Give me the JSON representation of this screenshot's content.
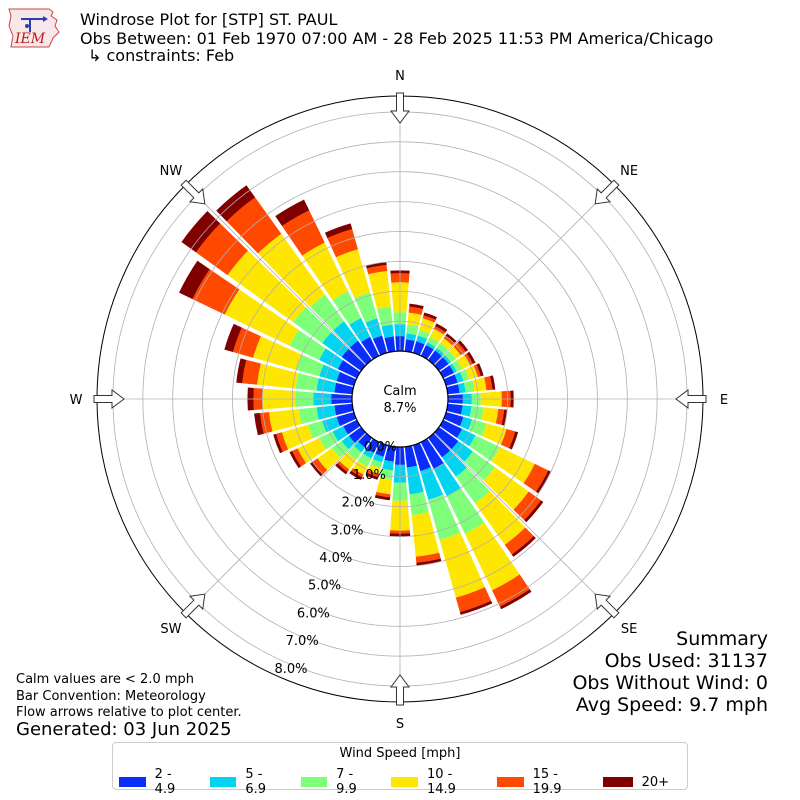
{
  "header": {
    "title": "Windrose Plot for [STP] ST. PAUL",
    "obs_between": "Obs Between: 01 Feb 1970 07:00 AM - 28 Feb 2025 11:53 PM America/Chicago",
    "constraints": "↳ constraints: Feb",
    "logo_text": "IEM"
  },
  "notes": {
    "calm_note": "Calm values are < 2.0 mph",
    "bar_convention": "Bar Convention: Meteorology",
    "flow_arrows": "Flow arrows relative to plot center.",
    "generated": "Generated: 03 Jun 2025"
  },
  "summary": {
    "heading": "Summary",
    "obs_used": "Obs Used: 31137",
    "obs_without_wind": "Obs Without Wind: 0",
    "avg_speed": "Avg Speed: 9.7 mph"
  },
  "calm": {
    "label": "Calm",
    "value": "8.7%"
  },
  "legend": {
    "title": "Wind Speed [mph]",
    "items": [
      {
        "label": "2 - 4.9",
        "color": "#0a2dfa"
      },
      {
        "label": "5 - 6.9",
        "color": "#00d4f0"
      },
      {
        "label": "7 - 9.9",
        "color": "#7dff7a"
      },
      {
        "label": "10 - 14.9",
        "color": "#ffe600"
      },
      {
        "label": "15 - 19.9",
        "color": "#ff4800"
      },
      {
        "label": "20+",
        "color": "#800000"
      }
    ]
  },
  "chart_data": {
    "type": "windrose",
    "direction_labels": [
      "N",
      "NE",
      "E",
      "SE",
      "S",
      "SW",
      "W",
      "NW"
    ],
    "radial_tick_labels": [
      "0.0%",
      "1.0%",
      "2.0%",
      "3.0%",
      "4.0%",
      "5.0%",
      "6.0%",
      "7.0%",
      "8.0%"
    ],
    "rmax": 8.5,
    "grid": true,
    "bins": [
      "2 - 4.9",
      "5 - 6.9",
      "7 - 9.9",
      "10 - 14.9",
      "15 - 19.9",
      "20+"
    ],
    "directions_deg": [
      0,
      10,
      20,
      30,
      40,
      50,
      60,
      70,
      80,
      90,
      100,
      110,
      120,
      130,
      140,
      150,
      160,
      170,
      180,
      190,
      200,
      210,
      220,
      230,
      240,
      250,
      260,
      270,
      280,
      290,
      300,
      310,
      320,
      330,
      340,
      350
    ],
    "values_cumulative_percent": [
      [
        0.5,
        0.9,
        1.3,
        2.3,
        2.6,
        2.7
      ],
      [
        0.4,
        0.6,
        0.9,
        1.3,
        1.5,
        1.6
      ],
      [
        0.4,
        0.6,
        0.8,
        1.2,
        1.3,
        1.4
      ],
      [
        0.4,
        0.5,
        0.7,
        1.0,
        1.1,
        1.2
      ],
      [
        0.4,
        0.5,
        0.7,
        0.9,
        1.0,
        1.1
      ],
      [
        0.4,
        0.5,
        0.7,
        0.9,
        1.1,
        1.2
      ],
      [
        0.4,
        0.5,
        0.7,
        1.0,
        1.1,
        1.2
      ],
      [
        0.4,
        0.6,
        0.8,
        1.1,
        1.2,
        1.3
      ],
      [
        0.4,
        0.6,
        0.9,
        1.3,
        1.5,
        1.6
      ],
      [
        0.5,
        0.8,
        1.1,
        1.8,
        2.1,
        2.2
      ],
      [
        0.5,
        0.8,
        1.2,
        1.7,
        1.9,
        2.0
      ],
      [
        0.6,
        0.9,
        1.4,
        2.1,
        2.4,
        2.5
      ],
      [
        0.7,
        1.2,
        2.1,
        3.4,
        3.9,
        4.0
      ],
      [
        0.8,
        1.4,
        2.3,
        3.7,
        4.2,
        4.3
      ],
      [
        0.8,
        1.6,
        2.7,
        4.4,
        4.8,
        4.9
      ],
      [
        1.0,
        2.0,
        3.4,
        5.5,
        6.1,
        6.2
      ],
      [
        0.9,
        1.9,
        3.3,
        5.3,
        5.8,
        5.9
      ],
      [
        0.7,
        1.6,
        2.3,
        3.7,
        3.9,
        4.0
      ],
      [
        0.6,
        1.2,
        1.8,
        2.8,
        2.9,
        3.0
      ],
      [
        0.5,
        0.8,
        1.1,
        1.6,
        1.7,
        1.8
      ],
      [
        0.4,
        0.6,
        0.8,
        1.0,
        1.1,
        1.2
      ],
      [
        0.4,
        0.6,
        0.9,
        1.2,
        1.3,
        1.4
      ],
      [
        0.4,
        0.6,
        0.9,
        1.3,
        1.4,
        1.5
      ],
      [
        0.5,
        0.8,
        1.2,
        1.8,
        2.0,
        2.1
      ],
      [
        0.5,
        0.9,
        1.4,
        2.2,
        2.4,
        2.5
      ],
      [
        0.6,
        1.1,
        1.6,
        2.5,
        2.7,
        2.8
      ],
      [
        0.6,
        1.2,
        1.8,
        2.8,
        3.1,
        3.3
      ],
      [
        0.7,
        1.3,
        1.9,
        3.0,
        3.3,
        3.5
      ],
      [
        0.6,
        1.2,
        1.9,
        3.2,
        3.7,
        3.9
      ],
      [
        0.6,
        1.2,
        2.0,
        3.5,
        4.2,
        4.5
      ],
      [
        0.7,
        1.4,
        2.5,
        4.9,
        6.1,
        6.6
      ],
      [
        0.8,
        1.6,
        2.8,
        5.5,
        6.8,
        7.4
      ],
      [
        0.8,
        1.6,
        2.7,
        5.2,
        6.7,
        7.2
      ],
      [
        0.7,
        1.4,
        2.4,
        4.2,
        5.4,
        5.8
      ],
      [
        0.6,
        1.2,
        2.1,
        3.6,
        4.3,
        4.5
      ],
      [
        0.5,
        0.9,
        1.5,
        2.7,
        2.9,
        3.0
      ]
    ]
  }
}
